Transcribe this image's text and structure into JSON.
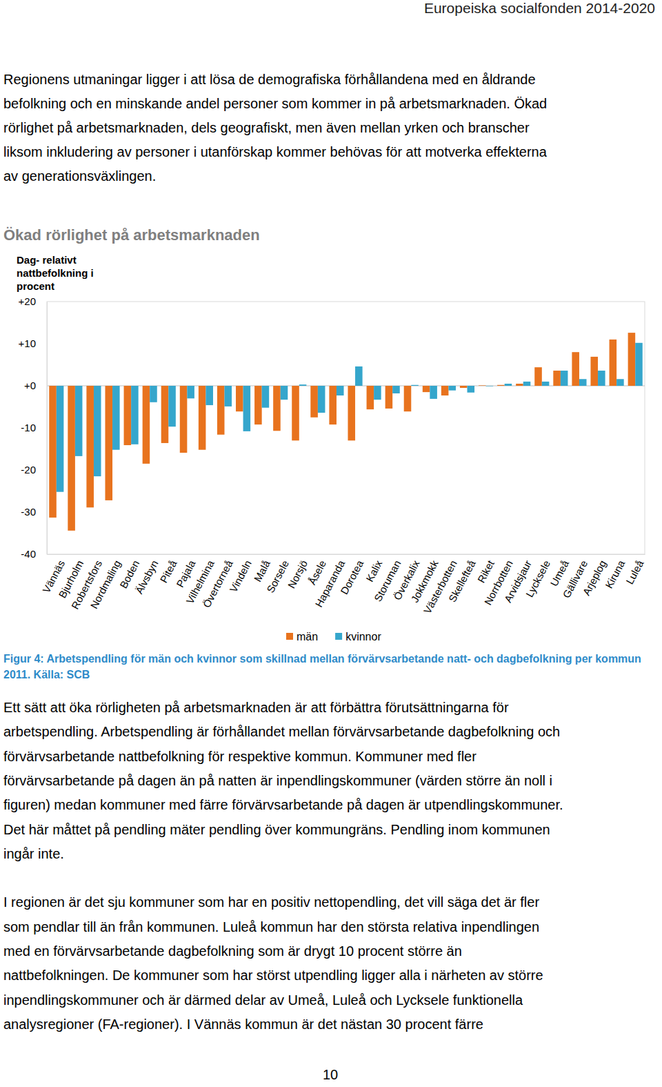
{
  "header": "Europeiska socialfonden 2014-2020",
  "intro": [
    "Regionens utmaningar ligger i att lösa de demografiska förhållandena med en åldrande",
    "befolkning och en minskande andel personer som kommer in på arbetsmarknaden. Ökad",
    "rörlighet på arbetsmarknaden, dels geografiskt, men även mellan yrken och branscher",
    "liksom inkludering av personer i utanförskap kommer behövas för att motverka effekterna",
    "av generationsväxlingen."
  ],
  "chart_data": {
    "type": "bar",
    "title": "Ökad rörlighet på arbetsmarknaden",
    "y_label": "Dag- relativt nattbefolkning i procent",
    "categories": [
      "Vännäs",
      "Bjurholm",
      "Robertsfors",
      "Nordmaling",
      "Boden",
      "Älvsbyn",
      "Piteå",
      "Pajala",
      "Vilhelmina",
      "Övertorneå",
      "Vindeln",
      "Malå",
      "Sorsele",
      "Norsjö",
      "Åsele",
      "Haparanda",
      "Dorotea",
      "Kalix",
      "Storuman",
      "Överkalix",
      "Jokkmokk",
      "Västerbotten",
      "Skellefteå",
      "Riket",
      "Norrbotten",
      "Arvidsjaur",
      "Lycksele",
      "Umeå",
      "Gällivare",
      "Arjeplog",
      "Kiruna",
      "Luleå"
    ],
    "series": [
      {
        "name": "män",
        "color": "#e8731e",
        "values": [
          -31.3,
          -34.4,
          -28.9,
          -27.2,
          -14.1,
          -18.5,
          -13.6,
          -15.9,
          -15.2,
          -11.6,
          -6.1,
          -9.2,
          -10.7,
          -13.0,
          -7.5,
          -9.2,
          -13.0,
          -5.6,
          -5.4,
          -6.1,
          -1.5,
          -2.3,
          -0.5,
          0.1,
          0.2,
          0.5,
          4.4,
          3.6,
          8.0,
          6.9,
          11.0,
          12.6
        ]
      },
      {
        "name": "kvinnor",
        "color": "#35a6cc",
        "values": [
          -25.2,
          -16.7,
          -21.5,
          -15.2,
          -13.9,
          -3.9,
          -9.7,
          -3.0,
          -4.6,
          -4.9,
          -10.8,
          -5.2,
          -3.3,
          0.3,
          -6.4,
          -2.3,
          4.6,
          -3.3,
          -1.8,
          0.2,
          -3.1,
          -1.1,
          -1.6,
          -0.1,
          0.5,
          1.0,
          1.0,
          3.6,
          1.6,
          3.6,
          1.6,
          10.2
        ]
      }
    ],
    "ylim": [
      -40,
      20
    ],
    "yticks": [
      {
        "value": 20,
        "label": "+20"
      },
      {
        "value": 10,
        "label": "+10"
      },
      {
        "value": 0,
        "label": "+0"
      },
      -10,
      -20,
      -30,
      -40
    ],
    "grid": false,
    "legend": "bottom"
  },
  "caption": [
    "Figur 4: Arbetspendling för män och kvinnor som skillnad mellan förvärvsarbetande natt- och dagbefolkning per kommun",
    "2011. Källa: SCB"
  ],
  "body": [
    [
      "Ett sätt att öka rörligheten på arbetsmarknaden är att förbättra förutsättningarna för",
      "arbetspendling. Arbetspendling är förhållandet mellan förvärvsarbetande dagbefolkning och",
      "förvärvsarbetande nattbefolkning för respektive kommun. Kommuner med fler",
      "förvärvsarbetande på dagen än på natten är inpendlingskommuner (värden större än noll i",
      "figuren) medan kommuner med färre förvärvsarbetande på dagen är utpendlingskommuner.",
      "Det här måttet på pendling mäter pendling över kommungräns. Pendling inom kommunen",
      "ingår inte."
    ],
    [
      "I regionen är det sju kommuner som har en positiv nettopendling, det vill säga det är fler",
      "som pendlar till än från kommunen. Luleå kommun har den största relativa inpendlingen",
      "med en förvärvsarbetande dagbefolkning som är drygt 10 procent större än",
      "nattbefolkningen. De kommuner som har störst utpendling ligger alla i närheten av större",
      "inpendlingskommuner och är därmed delar av Umeå, Luleå och Lycksele funktionella",
      "analysregioner (FA-regioner). I Vännäs kommun är det nästan 30 procent färre"
    ]
  ],
  "page_number": "10"
}
